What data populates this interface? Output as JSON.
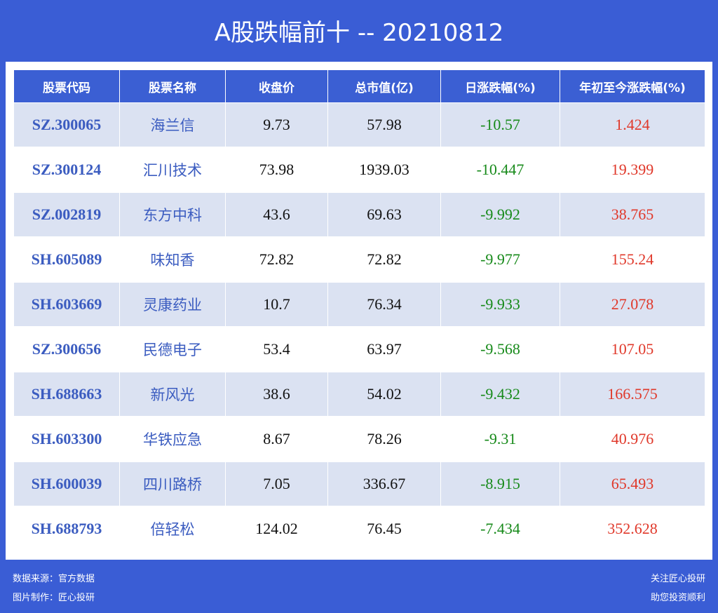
{
  "header": {
    "title": "A股跌幅前十 -- 20210812"
  },
  "table": {
    "columns": [
      "股票代码",
      "股票名称",
      "收盘价",
      "总市值(亿)",
      "日涨跌幅(%)",
      "年初至今涨跌幅(%)"
    ],
    "rows": [
      [
        "SZ.300065",
        "海兰信",
        9.73,
        57.98,
        -10.57,
        1.424
      ],
      [
        "SZ.300124",
        "汇川技术",
        73.98,
        1939.03,
        -10.447,
        19.399
      ],
      [
        "SZ.002819",
        "东方中科",
        43.6,
        69.63,
        -9.992,
        38.765
      ],
      [
        "SH.605089",
        "味知香",
        72.82,
        72.82,
        -9.977,
        155.24
      ],
      [
        "SH.603669",
        "灵康药业",
        10.7,
        76.34,
        -9.933,
        27.078
      ],
      [
        "SZ.300656",
        "民德电子",
        53.4,
        63.97,
        -9.568,
        107.05
      ],
      [
        "SH.688663",
        "新风光",
        38.6,
        54.02,
        -9.432,
        166.575
      ],
      [
        "SH.603300",
        "华铁应急",
        8.67,
        78.26,
        -9.31,
        40.976
      ],
      [
        "SH.600039",
        "四川路桥",
        7.05,
        336.67,
        -8.915,
        65.493
      ],
      [
        "SH.688793",
        "倍轻松",
        124.02,
        76.45,
        -7.434,
        352.628
      ]
    ]
  },
  "footer": {
    "source": "数据来源：官方数据",
    "maker": "图片制作：匠心投研",
    "follow": "关注匠心投研",
    "slogan": "助您投资顺利"
  }
}
